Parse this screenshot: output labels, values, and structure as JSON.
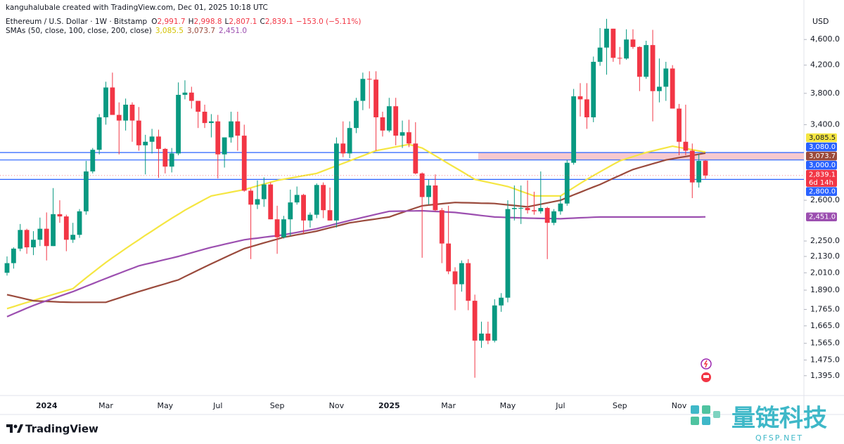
{
  "header": {
    "credit": "kanguhalubale created with TradingView.com, Dec 01, 2025 10:18 UTC",
    "symbol": "Ethereum / U.S. Dollar · 1W · Bitstamp",
    "ohlc": [
      {
        "key": "O",
        "label": "2,991.7"
      },
      {
        "key": "H",
        "label": "2,998.8"
      },
      {
        "key": "L",
        "label": "2,807.1"
      },
      {
        "key": "C",
        "label": "2,839.1"
      }
    ],
    "change": "−153.0 (−5.11%)",
    "sma_title": "SMAs (50, close, 100, close, 200, close)"
  },
  "footer": {
    "brand": "TradingView",
    "watermark_title": "量链科技",
    "watermark_site": "QFSP.NET"
  },
  "chart_data": {
    "type": "candlestick",
    "currency_label": "USD",
    "log_scale": true,
    "up_color": "#089981",
    "down_color": "#f23645",
    "ylim": [
      1310,
      5060
    ],
    "yticks": [
      {
        "value": 4600,
        "label": "4,600.0"
      },
      {
        "value": 4200,
        "label": "4,200.0"
      },
      {
        "value": 3800,
        "label": "3,800.0"
      },
      {
        "value": 3400,
        "label": "3,400.0"
      },
      {
        "value": 2600,
        "label": "2,600.0"
      },
      {
        "value": 2250,
        "label": "2,250.0"
      },
      {
        "value": 2130,
        "label": "2,130.0"
      },
      {
        "value": 2010,
        "label": "2,010.0"
      },
      {
        "value": 1890,
        "label": "1,890.0"
      },
      {
        "value": 1765,
        "label": "1,765.0"
      },
      {
        "value": 1665,
        "label": "1,665.0"
      },
      {
        "value": 1565,
        "label": "1,565.0"
      },
      {
        "value": 1475,
        "label": "1,475.0"
      },
      {
        "value": 1395,
        "label": "1,395.0"
      }
    ],
    "categories": [
      null,
      null,
      null,
      null,
      null,
      null,
      "2024",
      null,
      null,
      null,
      null,
      null,
      null,
      null,
      null,
      "Mar",
      null,
      null,
      null,
      null,
      null,
      null,
      null,
      null,
      "May",
      null,
      null,
      null,
      null,
      null,
      null,
      null,
      "Jul",
      null,
      null,
      null,
      null,
      null,
      null,
      null,
      null,
      "Sep",
      null,
      null,
      null,
      null,
      null,
      null,
      null,
      null,
      "Nov",
      null,
      null,
      null,
      null,
      null,
      null,
      null,
      "2025",
      null,
      null,
      null,
      null,
      null,
      null,
      null,
      null,
      "Mar",
      null,
      null,
      null,
      null,
      null,
      null,
      null,
      null,
      "May",
      null,
      null,
      null,
      null,
      null,
      null,
      null,
      "Jul",
      null,
      null,
      null,
      null,
      null,
      null,
      null,
      null,
      "Sep",
      null,
      null,
      null,
      null,
      null,
      null,
      null,
      null,
      "Nov",
      null,
      null,
      null,
      null
    ],
    "open": [
      2010,
      2080,
      2190,
      2340,
      2200,
      2260,
      2350,
      2210,
      2475,
      2455,
      2260,
      2300,
      2500,
      2880,
      3110,
      3490,
      3880,
      3520,
      3450,
      3650,
      3450,
      3160,
      3200,
      3260,
      3120,
      2930,
      3070,
      3780,
      3810,
      3700,
      3560,
      3420,
      3440,
      3060,
      3250,
      3440,
      3270,
      2690,
      2560,
      2610,
      2750,
      2430,
      2280,
      2430,
      2580,
      2650,
      2420,
      2470,
      2745,
      2510,
      2420,
      3180,
      3070,
      3360,
      3700,
      4000,
      3990,
      3490,
      3330,
      3630,
      3270,
      3310,
      3180,
      2860,
      2630,
      2740,
      2510,
      2230,
      2020,
      1930,
      2080,
      1820,
      1580,
      1620,
      1580,
      1790,
      1840,
      2520,
      2530,
      2530,
      2510,
      2500,
      2530,
      2400,
      2500,
      2570,
      2970,
      3760,
      3720,
      3490,
      4250,
      4470,
      4780,
      4310,
      4300,
      4600,
      4480,
      4030,
      4510,
      3830,
      3890,
      4150,
      3600,
      3200,
      3100,
      2770,
      2991.7
    ],
    "high": [
      2130,
      2200,
      2390,
      2350,
      2330,
      2445,
      2490,
      2715,
      2600,
      2470,
      2400,
      2520,
      2990,
      3130,
      3530,
      3960,
      4090,
      3680,
      3730,
      3680,
      3620,
      3280,
      3350,
      3340,
      3130,
      3130,
      3950,
      3980,
      3890,
      3700,
      3650,
      3530,
      3520,
      3250,
      3560,
      3560,
      3400,
      2710,
      2790,
      2820,
      2770,
      2550,
      2460,
      2700,
      2730,
      2660,
      2490,
      2760,
      2770,
      2720,
      3250,
      3440,
      3440,
      3740,
      4090,
      4110,
      4110,
      3560,
      3740,
      3740,
      3450,
      3460,
      3430,
      2870,
      2800,
      2850,
      2530,
      2550,
      2050,
      2100,
      2110,
      1860,
      1690,
      1690,
      1830,
      1870,
      2600,
      2740,
      2740,
      2790,
      2680,
      2880,
      2540,
      2520,
      2640,
      3000,
      3860,
      3940,
      3940,
      4330,
      4790,
      4950,
      4780,
      4480,
      4770,
      4770,
      4490,
      4580,
      4760,
      4300,
      4250,
      4200,
      3660,
      3650,
      3180,
      3060,
      2998.8
    ],
    "low": [
      1990,
      2040,
      2170,
      2150,
      2140,
      2210,
      2100,
      2210,
      2400,
      2170,
      2235,
      2275,
      2470,
      2860,
      3060,
      3400,
      3520,
      3060,
      3330,
      3200,
      3100,
      2850,
      3070,
      2815,
      2860,
      2870,
      3050,
      3720,
      3600,
      3360,
      3360,
      3250,
      2810,
      2920,
      3190,
      3100,
      2680,
      2110,
      2520,
      2540,
      2430,
      2150,
      2270,
      2290,
      2560,
      2310,
      2360,
      2440,
      2440,
      2420,
      2360,
      3030,
      3020,
      3300,
      3580,
      3600,
      3100,
      3260,
      3310,
      3160,
      3130,
      3140,
      2850,
      2120,
      2560,
      2500,
      2080,
      2000,
      1760,
      1880,
      1760,
      1385,
      1540,
      1560,
      1570,
      1750,
      1810,
      2420,
      2390,
      2480,
      2470,
      2480,
      2110,
      2380,
      2470,
      2550,
      2950,
      3500,
      3350,
      3430,
      4190,
      4060,
      4250,
      4210,
      4280,
      4450,
      3830,
      4000,
      3440,
      3680,
      3700,
      3600,
      3050,
      3050,
      2620,
      2720,
      2807.1
    ],
    "close": [
      2080,
      2190,
      2340,
      2200,
      2260,
      2350,
      2210,
      2475,
      2455,
      2260,
      2300,
      2500,
      2880,
      3110,
      3490,
      3880,
      3520,
      3450,
      3650,
      3450,
      3160,
      3200,
      3260,
      3120,
      2930,
      3070,
      3780,
      3810,
      3700,
      3560,
      3420,
      3440,
      3060,
      3250,
      3440,
      3270,
      2690,
      2560,
      2610,
      2750,
      2430,
      2280,
      2430,
      2580,
      2650,
      2420,
      2470,
      2745,
      2510,
      2420,
      3180,
      3070,
      3360,
      3700,
      4000,
      3990,
      3490,
      3330,
      3630,
      3270,
      3310,
      3180,
      2860,
      2630,
      2740,
      2510,
      2230,
      2020,
      1930,
      2080,
      1820,
      1580,
      1620,
      1580,
      1790,
      1840,
      2520,
      2530,
      2530,
      2510,
      2500,
      2530,
      2400,
      2500,
      2570,
      2970,
      3760,
      3720,
      3490,
      4250,
      4470,
      4780,
      4310,
      4300,
      4600,
      4480,
      4030,
      4510,
      3830,
      3890,
      4150,
      3600,
      3200,
      3100,
      2770,
      2990,
      2839.1
    ],
    "last_price_label": "2,839.1",
    "countdown": "6d 14h",
    "overlays": [
      {
        "color": "#f5e642",
        "text_color": "#131722",
        "last_label": "3,085.5",
        "values": [
          1770,
          1783,
          1796,
          1809,
          1822,
          1835,
          1848,
          1861,
          1874,
          1887,
          1900,
          1937,
          1974,
          2011,
          2048,
          2085,
          2120,
          2155,
          2190,
          2225,
          2260,
          2296,
          2331,
          2367,
          2403,
          2439,
          2474,
          2510,
          2543,
          2575,
          2608,
          2640,
          2652,
          2664,
          2676,
          2688,
          2700,
          2718,
          2736,
          2754,
          2772,
          2790,
          2802,
          2813,
          2825,
          2837,
          2848,
          2860,
          2886,
          2912,
          2938,
          2964,
          2990,
          3018,
          3045,
          3073,
          3100,
          3114,
          3128,
          3142,
          3156,
          3170,
          3150,
          3130,
          3088,
          3045,
          3003,
          2960,
          2920,
          2880,
          2840,
          2800,
          2786,
          2772,
          2758,
          2744,
          2730,
          2708,
          2685,
          2663,
          2640,
          2640,
          2640,
          2640,
          2640,
          2680,
          2720,
          2760,
          2800,
          2838,
          2876,
          2914,
          2952,
          2990,
          3013,
          3035,
          3058,
          3080,
          3098,
          3115,
          3133,
          3150,
          3137,
          3124,
          3111,
          3098,
          3085.5
        ]
      },
      {
        "color": "#9a4a3c",
        "text_color": "#ffffff",
        "last_label": "3,073.7",
        "values": [
          1860,
          1850,
          1840,
          1830,
          1820,
          1818,
          1816,
          1814,
          1812,
          1811,
          1810,
          1810,
          1810,
          1810,
          1810,
          1810,
          1824,
          1838,
          1852,
          1866,
          1880,
          1893,
          1907,
          1920,
          1933,
          1947,
          1960,
          1983,
          2006,
          2029,
          2052,
          2075,
          2098,
          2121,
          2144,
          2167,
          2190,
          2205,
          2220,
          2235,
          2250,
          2265,
          2280,
          2290,
          2300,
          2310,
          2320,
          2330,
          2344,
          2358,
          2372,
          2386,
          2400,
          2408,
          2417,
          2425,
          2433,
          2442,
          2450,
          2470,
          2490,
          2510,
          2530,
          2550,
          2556,
          2562,
          2568,
          2574,
          2580,
          2578,
          2577,
          2575,
          2573,
          2572,
          2570,
          2564,
          2558,
          2552,
          2546,
          2540,
          2552,
          2564,
          2576,
          2588,
          2600,
          2625,
          2650,
          2675,
          2700,
          2725,
          2750,
          2780,
          2810,
          2840,
          2870,
          2900,
          2920,
          2940,
          2960,
          2980,
          3000,
          3012,
          3025,
          3037,
          3049,
          3061,
          3073.7
        ]
      },
      {
        "color": "#9c4fb0",
        "text_color": "#ffffff",
        "last_label": "2,451.0",
        "values": [
          1720,
          1738,
          1755,
          1773,
          1790,
          1805,
          1820,
          1835,
          1850,
          1865,
          1880,
          1898,
          1916,
          1934,
          1952,
          1970,
          1988,
          2006,
          2024,
          2042,
          2060,
          2072,
          2083,
          2095,
          2107,
          2118,
          2130,
          2144,
          2158,
          2172,
          2186,
          2200,
          2212,
          2224,
          2236,
          2248,
          2260,
          2267,
          2273,
          2280,
          2287,
          2293,
          2300,
          2310,
          2320,
          2330,
          2340,
          2350,
          2364,
          2378,
          2392,
          2406,
          2420,
          2433,
          2447,
          2460,
          2473,
          2487,
          2500,
          2501,
          2502,
          2503,
          2504,
          2505,
          2502,
          2499,
          2496,
          2493,
          2490,
          2483,
          2477,
          2470,
          2463,
          2457,
          2450,
          2448,
          2446,
          2444,
          2442,
          2440,
          2439,
          2438,
          2437,
          2436,
          2435,
          2438,
          2440,
          2443,
          2445,
          2448,
          2450,
          2450,
          2450,
          2450,
          2450,
          2450,
          2450,
          2450,
          2450,
          2450,
          2450,
          2450,
          2450,
          2450,
          2450,
          2450,
          2451
        ]
      }
    ],
    "levels": [
      {
        "value": 3080,
        "label": "3,080.0"
      },
      {
        "value": 3000,
        "label": "3,000.0"
      },
      {
        "value": 2800,
        "label": "2,800.0"
      }
    ],
    "level_color": "#2962ff",
    "zone": {
      "low": 3000,
      "high": 3080,
      "color": "#f8c9cf"
    }
  }
}
